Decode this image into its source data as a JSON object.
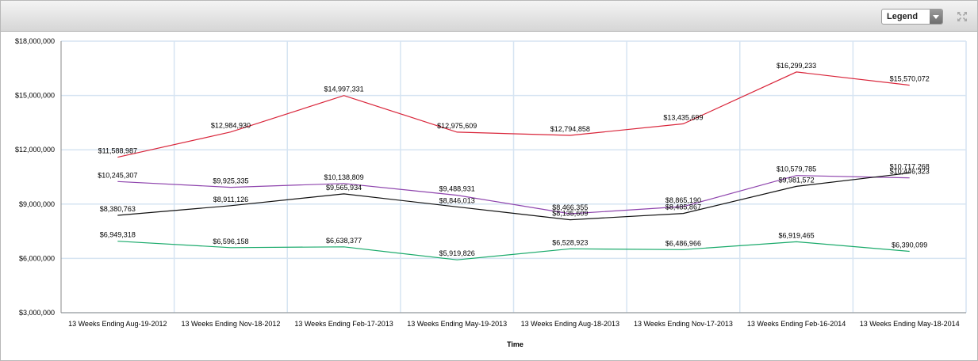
{
  "toolbar": {
    "legend_label": "Legend",
    "expand_icon": "expand-icon"
  },
  "chart_data": {
    "type": "line",
    "title": "",
    "xlabel": "Time",
    "ylabel": "",
    "ylim": [
      3000000,
      18000000
    ],
    "yticks": [
      3000000,
      6000000,
      9000000,
      12000000,
      15000000,
      18000000
    ],
    "ytick_labels": [
      "$3,000,000",
      "$6,000,000",
      "$9,000,000",
      "$12,000,000",
      "$15,000,000",
      "$18,000,000"
    ],
    "grid": true,
    "categories": [
      "13 Weeks Ending Aug-19-2012",
      "13 Weeks Ending Nov-18-2012",
      "13 Weeks Ending Feb-17-2013",
      "13 Weeks Ending May-19-2013",
      "13 Weeks Ending Aug-18-2013",
      "13 Weeks Ending Nov-17-2013",
      "13 Weeks Ending Feb-16-2014",
      "13 Weeks Ending May-18-2014"
    ],
    "series": [
      {
        "color": "#d9253a",
        "values": [
          11588987,
          12984930,
          14997331,
          12975609,
          12794858,
          13435699,
          16299233,
          15570072
        ],
        "labels": [
          "$11,588,987",
          "$12,984,930",
          "$14,997,331",
          "$12,975,609",
          "$12,794,858",
          "$13,435,699",
          "$16,299,233",
          "$15,570,072"
        ]
      },
      {
        "color": "#8e44ad",
        "values": [
          10245307,
          9925335,
          10138809,
          9488931,
          8466355,
          8865190,
          10579785,
          10446323
        ],
        "labels": [
          "$10,245,307",
          "$9,925,335",
          "$10,138,809",
          "$9,488,931",
          "$8,466,355",
          "$8,865,190",
          "$10,579,785",
          "$10,446,323"
        ]
      },
      {
        "color": "#111111",
        "values": [
          8380763,
          8911126,
          9565934,
          8846013,
          8135609,
          8485867,
          9981572,
          10717268
        ],
        "labels": [
          "$8,380,763",
          "$8,911,126",
          "$9,565,934",
          "$8,846,013",
          "$8,135,609",
          "$8,485,867",
          "$9,981,572",
          "$10,717,268"
        ]
      },
      {
        "color": "#1aaa6b",
        "values": [
          6949318,
          6596158,
          6638377,
          5919826,
          6528923,
          6486966,
          6919465,
          6390099
        ],
        "labels": [
          "$6,949,318",
          "$6,596,158",
          "$6,638,377",
          "$5,919,826",
          "$6,528,923",
          "$6,486,966",
          "$6,919,465",
          "$6,390,099"
        ]
      }
    ]
  }
}
